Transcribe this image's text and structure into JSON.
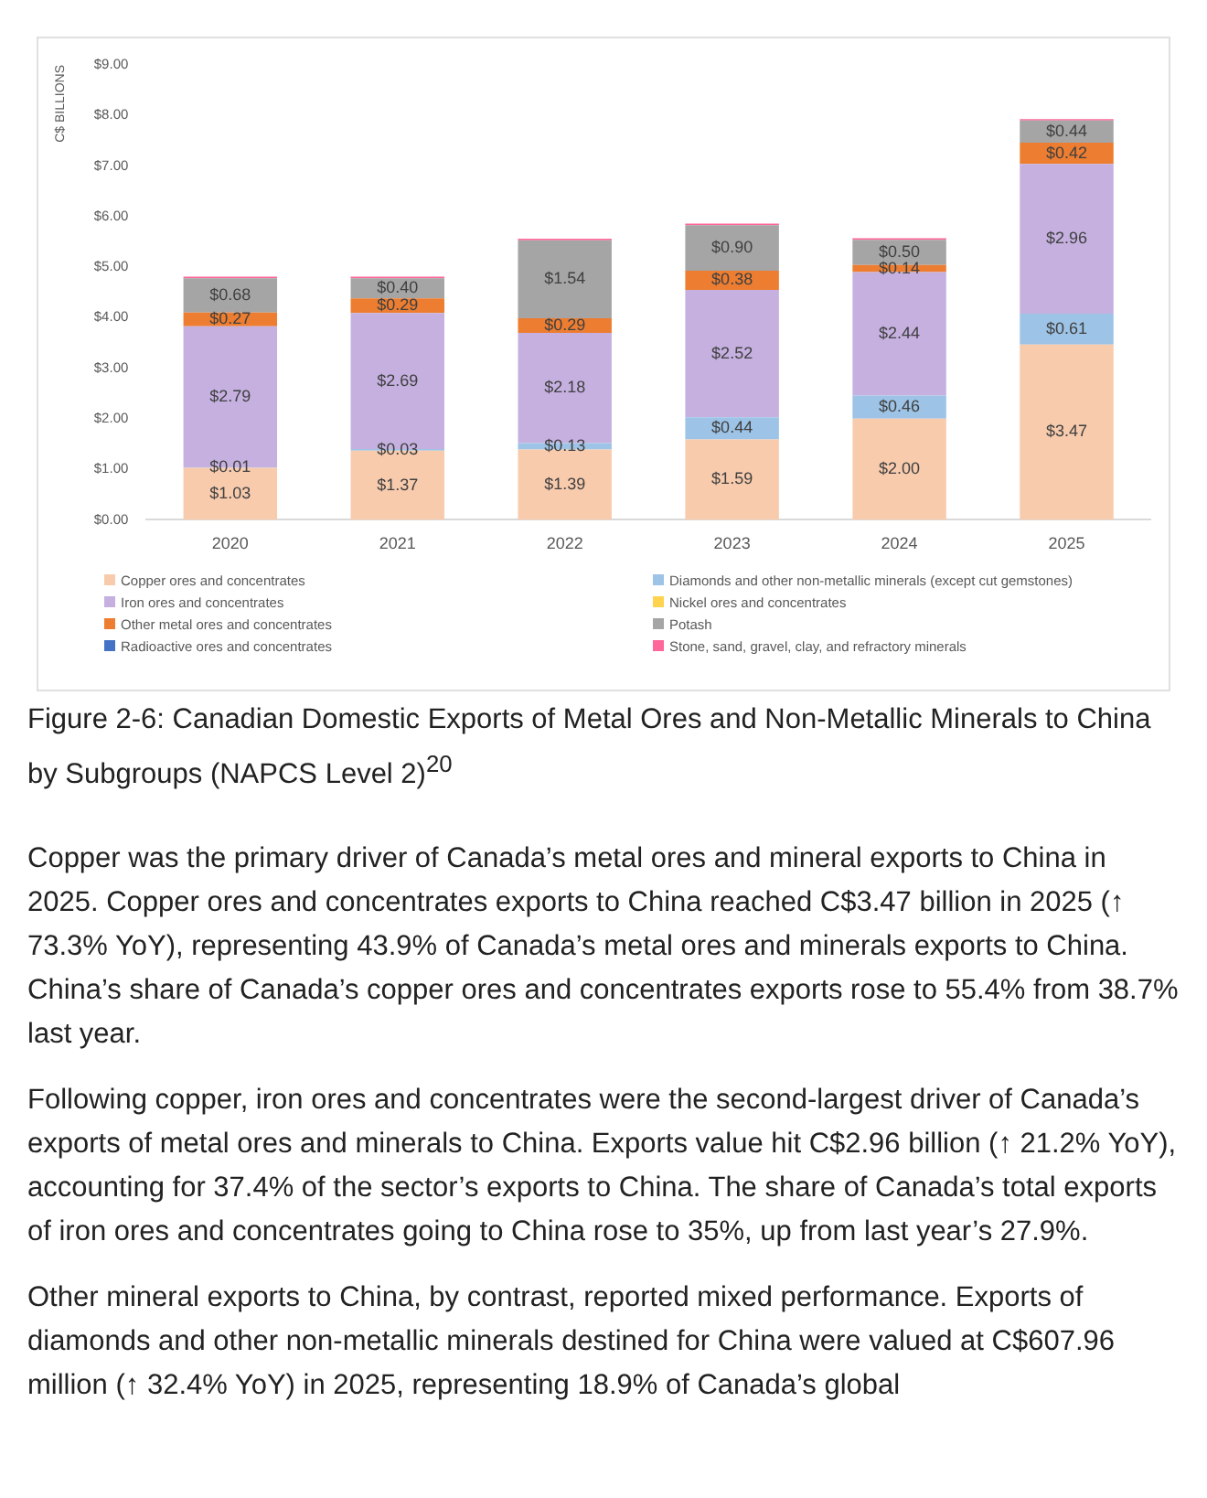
{
  "chart_data": {
    "type": "bar",
    "stacked": true,
    "ylabel": "C$ BILLIONS",
    "categories": [
      "2020",
      "2021",
      "2022",
      "2023",
      "2024",
      "2025"
    ],
    "ylim": [
      0,
      9
    ],
    "yticks": [
      {
        "value": 0,
        "label": "$0.00"
      },
      {
        "value": 1,
        "label": "$1.00"
      },
      {
        "value": 2,
        "label": "$2.00"
      },
      {
        "value": 3,
        "label": "$3.00"
      },
      {
        "value": 4,
        "label": "$4.00"
      },
      {
        "value": 5,
        "label": "$5.00"
      },
      {
        "value": 6,
        "label": "$6.00"
      },
      {
        "value": 7,
        "label": "$7.00"
      },
      {
        "value": 8,
        "label": "$8.00"
      },
      {
        "value": 9,
        "label": "$9.00"
      }
    ],
    "grid": false,
    "legend": "bottom",
    "series": [
      {
        "name": "Copper ores and concentrates",
        "color": "#f8cbad",
        "values": [
          1.03,
          1.37,
          1.39,
          1.59,
          2.0,
          3.47
        ],
        "value_labels": [
          "$1.03",
          "$1.37",
          "$1.39",
          "$1.59",
          "$2.00",
          "$3.47"
        ]
      },
      {
        "name": "Diamonds and other non-metallic minerals (except cut gemstones)",
        "color": "#9dc3e6",
        "values": [
          0.01,
          0.03,
          0.13,
          0.44,
          0.46,
          0.61
        ],
        "value_labels": [
          "$0.01",
          "$0.03",
          "$0.13",
          "$0.44",
          "$0.46",
          "$0.61"
        ]
      },
      {
        "name": "Iron ores and concentrates",
        "color": "#c5b0e0",
        "values": [
          2.79,
          2.69,
          2.18,
          2.52,
          2.44,
          2.96
        ],
        "value_labels": [
          "$2.79",
          "$2.69",
          "$2.18",
          "$2.52",
          "$2.44",
          "$2.96"
        ]
      },
      {
        "name": "Nickel ores and concentrates",
        "color": "#ffd34f",
        "values": [
          null,
          null,
          null,
          null,
          null,
          null
        ]
      },
      {
        "name": "Other metal ores and concentrates",
        "color": "#ed7d31",
        "values": [
          0.27,
          0.29,
          0.29,
          0.38,
          0.14,
          0.42
        ],
        "value_labels": [
          "$0.27",
          "$0.29",
          "$0.29",
          "$0.38",
          "$0.14",
          "$0.42"
        ]
      },
      {
        "name": "Potash",
        "color": "#a5a5a5",
        "values": [
          0.68,
          0.4,
          1.54,
          0.9,
          0.5,
          0.44
        ],
        "value_labels": [
          "$0.68",
          "$0.40",
          "$1.54",
          "$0.90",
          "$0.50",
          "$0.44"
        ]
      },
      {
        "name": "Radioactive ores and concentrates",
        "color": "#4472c4",
        "values": [
          null,
          null,
          null,
          null,
          null,
          null
        ]
      },
      {
        "name": "Stone, sand, gravel, clay, and refractory minerals",
        "color": "#ff6699",
        "values": [
          0.03,
          0.03,
          0.03,
          0.03,
          0.03,
          0.03
        ]
      }
    ],
    "annotations": [
      "Figure 2-6: Canadian Domestic Exports of Metal Ores and Non-Metallic Minerals to China by Subgroups (NAPCS Level 2)$^{20}$",
      "Copper was the primary driver of Canada’s metal ores and mineral exports to China in 2025. Copper ores and concentrates exports to China reached C$3.47 billion in 2025 (↑ 73.3% YoY), representing 43.9% of Canada’s metal ores and minerals exports to China. China’s share of Canada’s copper ores and concentrates exports rose to 55.4% from 38.7% last year.",
      "Following copper, iron ores and concentrates were the second-largest driver of Canada’s exports of metal ores and minerals to China. Exports value hit C$2.96 billion (↑ 21.2% YoY), accounting for 37.4% of the sector’s exports to China. The share of Canada’s total exports of iron ores and concentrates going to China rose to 35%, up from last year’s 27.9%.",
      "Other mineral exports to China, by contrast, reported mixed performance. Exports of diamonds and other non-metallic minerals destined for China were valued at C$607.96 million (↑ 32.4% YoY) in 2025, representing 18.9% of Canada’s global"
    ]
  }
}
